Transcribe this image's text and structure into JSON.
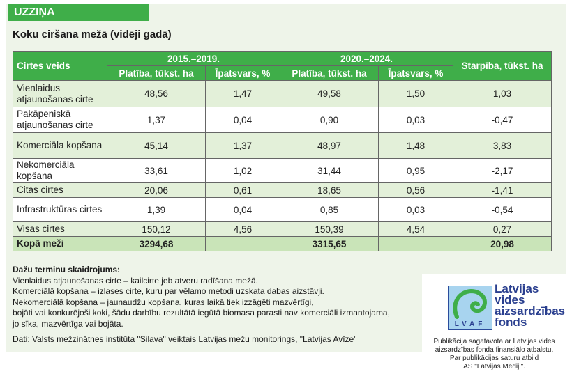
{
  "tag": "UZZIŅA",
  "title": "Koku ciršana mežā (vidēji gadā)",
  "table": {
    "col_type": "Cirtes veids",
    "period1": "2015.–2019.",
    "period2": "2020.–2024.",
    "area": "Platība, tūkst. ha",
    "share": "Īpatsvars, %",
    "diff": "Starpība, tūkst. ha",
    "rows": [
      {
        "type": "Vienlaidus atjaunošanas cirte",
        "a1": "48,56",
        "s1": "1,47",
        "a2": "49,58",
        "s2": "1,50",
        "d": "1,03"
      },
      {
        "type": "Pakāpeniskā atjaunošanas cirte",
        "a1": "1,37",
        "s1": "0,04",
        "a2": "0,90",
        "s2": "0,03",
        "d": "-0,47"
      },
      {
        "type": "Komerciāla kopšana",
        "a1": "45,14",
        "s1": "1,37",
        "a2": "48,97",
        "s2": "1,48",
        "d": "3,83"
      },
      {
        "type": "Nekomerciāla kopšana",
        "a1": "33,61",
        "s1": "1,02",
        "a2": "31,44",
        "s2": "0,95",
        "d": "-2,17"
      },
      {
        "type": "Citas cirtes",
        "a1": "20,06",
        "s1": "0,61",
        "a2": "18,65",
        "s2": "0,56",
        "d": "-1,41"
      },
      {
        "type": "Infrastruktūras cirtes",
        "a1": "1,39",
        "s1": "0,04",
        "a2": "0,85",
        "s2": "0,03",
        "d": "-0,54"
      },
      {
        "type": "Visas cirtes",
        "a1": "150,12",
        "s1": "4,56",
        "a2": "150,39",
        "s2": "4,54",
        "d": "0,27"
      },
      {
        "type": "Kopā meži",
        "a1": "3294,68",
        "s1": "",
        "a2": "3315,65",
        "s2": "",
        "d": "20,98"
      }
    ]
  },
  "notes": {
    "heading": "Dažu terminu skaidrojums:",
    "lines": [
      "Vienlaidus atjaunošanas cirte – kailcirte jeb atveru radīšana mežā.",
      "Komerciālā kopšana – izlases cirte, kuru par vēlamo metodi uzskata dabas aizstāvji.",
      "Nekomerciālā kopšana – jaunaudžu kopšana, kuras laikā tiek izzāģēti mazvērtīgi,",
      "bojāti vai konkurējoši koki, šādu darbību rezultātā iegūtā biomasa parasti nav komerciāli izmantojama,",
      "jo sīka, mazvērtīga vai bojāta."
    ],
    "source": "Dati: Valsts mežzinātnes institūta \"Silava\" veiktais Latvijas mežu monitorings, \"Latvijas Avīze\""
  },
  "logo": {
    "abbr": "LVAF",
    "name": [
      "Latvijas",
      "vides",
      "aizsardzības",
      "fonds"
    ],
    "note": [
      "Publikācija sagatavota ar Latvijas vides",
      "aizsardzības fonda finansiālo atbalstu.",
      "Par publikācijas saturu atbild",
      "AS \"Latvijas Mediji\"."
    ]
  }
}
